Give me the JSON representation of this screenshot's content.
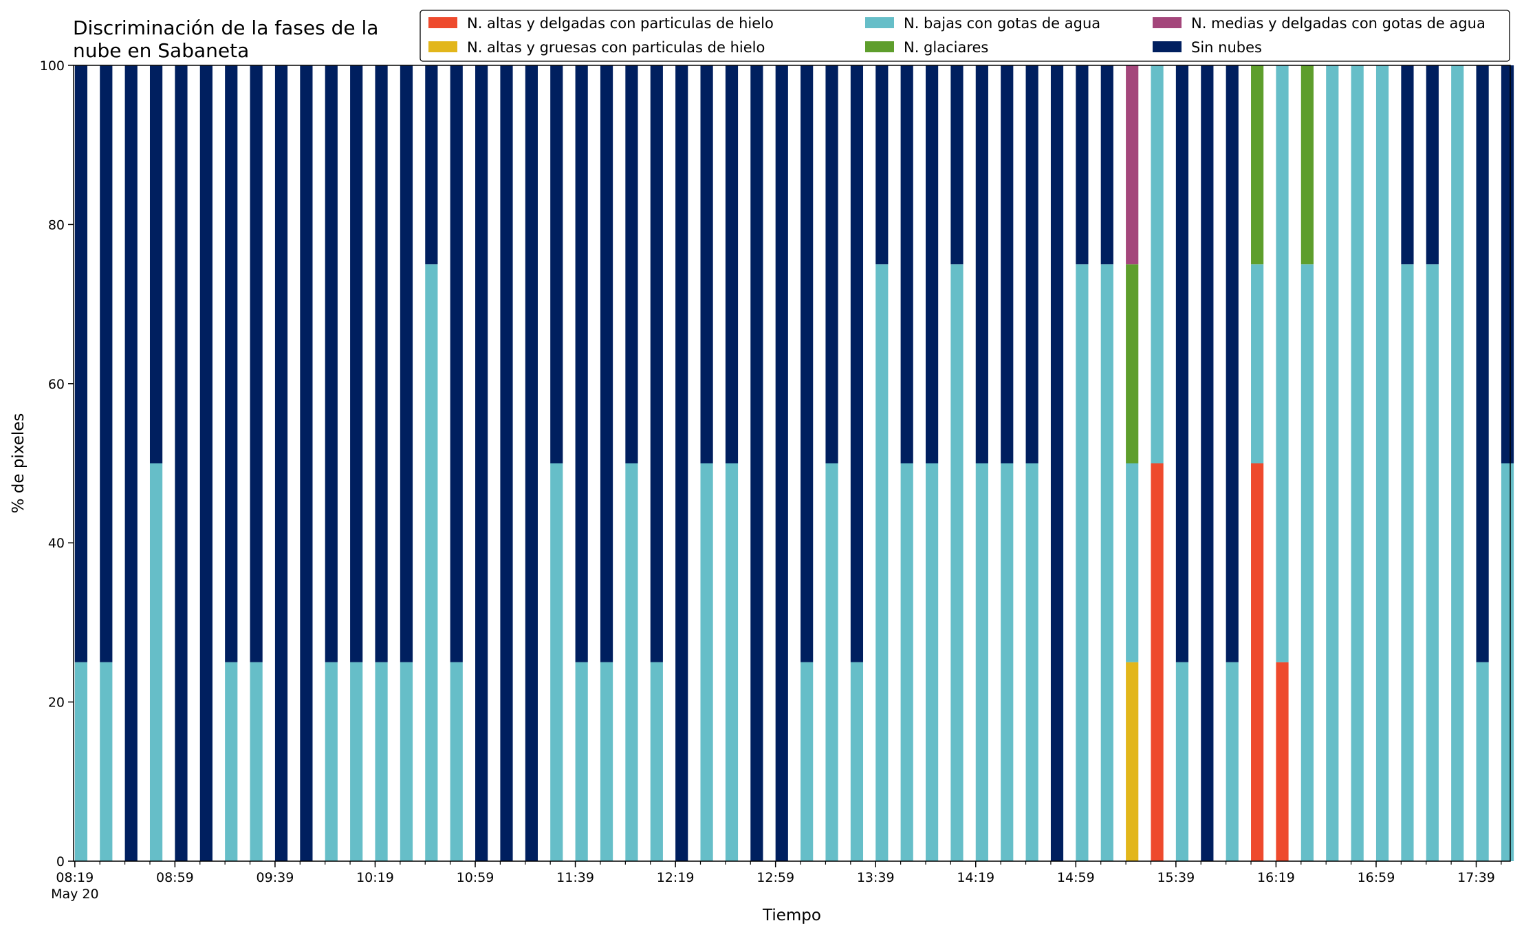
{
  "chart_data": {
    "type": "bar",
    "stacked": true,
    "title_lines": [
      "Discriminación de la fases de la",
      "nube en Sabaneta"
    ],
    "xlabel": "Tiempo",
    "ylabel": "% de pixeles",
    "ylim": [
      0,
      100
    ],
    "y_ticks": [
      0,
      20,
      40,
      60,
      80,
      100
    ],
    "x_tick_labels": [
      "08:19",
      "08:59",
      "09:39",
      "10:19",
      "10:59",
      "11:39",
      "12:19",
      "12:59",
      "13:39",
      "14:19",
      "14:59",
      "15:39",
      "16:19",
      "16:59",
      "17:39"
    ],
    "x_date_label": "May 20",
    "grid": false,
    "legend_position": "top-right",
    "legend_columns": 3,
    "times": [
      "08:19",
      "08:29",
      "08:39",
      "08:49",
      "08:59",
      "09:09",
      "09:19",
      "09:29",
      "09:39",
      "09:49",
      "09:59",
      "10:09",
      "10:19",
      "10:29",
      "10:39",
      "10:49",
      "10:59",
      "11:09",
      "11:19",
      "11:29",
      "11:39",
      "11:49",
      "11:59",
      "12:09",
      "12:19",
      "12:29",
      "12:39",
      "12:49",
      "12:59",
      "13:09",
      "13:19",
      "13:29",
      "13:39",
      "13:49",
      "13:59",
      "14:09",
      "14:19",
      "14:29",
      "14:39",
      "14:49",
      "14:59",
      "15:09",
      "15:19",
      "15:29",
      "15:39",
      "15:49",
      "15:59",
      "16:09",
      "16:19",
      "16:29",
      "16:39",
      "16:49",
      "16:59",
      "17:09",
      "17:19",
      "17:29",
      "17:39",
      "17:49"
    ],
    "series": [
      {
        "name": "N. altas y delgadas con particulas de hielo",
        "color": "#ee4a2d",
        "values": [
          0,
          0,
          0,
          0,
          0,
          0,
          0,
          0,
          0,
          0,
          0,
          0,
          0,
          0,
          0,
          0,
          0,
          0,
          0,
          0,
          0,
          0,
          0,
          0,
          0,
          0,
          0,
          0,
          0,
          0,
          0,
          0,
          0,
          0,
          0,
          0,
          0,
          0,
          0,
          0,
          0,
          0,
          0,
          50,
          0,
          0,
          0,
          50,
          25,
          0,
          0,
          0,
          0,
          0,
          0,
          0,
          0,
          0
        ]
      },
      {
        "name": "N. altas y gruesas con particulas de hielo",
        "color": "#e2b61b",
        "values": [
          0,
          0,
          0,
          0,
          0,
          0,
          0,
          0,
          0,
          0,
          0,
          0,
          0,
          0,
          0,
          0,
          0,
          0,
          0,
          0,
          0,
          0,
          0,
          0,
          0,
          0,
          0,
          0,
          0,
          0,
          0,
          0,
          0,
          0,
          0,
          0,
          0,
          0,
          0,
          0,
          0,
          0,
          25,
          0,
          0,
          0,
          0,
          0,
          0,
          0,
          0,
          0,
          0,
          0,
          0,
          0,
          0,
          0
        ]
      },
      {
        "name": "N. bajas con gotas de agua",
        "color": "#66bec8",
        "values": [
          25,
          25,
          0,
          50,
          0,
          0,
          25,
          25,
          0,
          0,
          25,
          25,
          25,
          25,
          75,
          25,
          0,
          0,
          0,
          50,
          25,
          25,
          50,
          25,
          0,
          50,
          50,
          0,
          0,
          25,
          50,
          25,
          75,
          50,
          50,
          75,
          50,
          50,
          50,
          0,
          75,
          75,
          25,
          50,
          25,
          0,
          25,
          25,
          75,
          75,
          100,
          100,
          100,
          75,
          75,
          100,
          25,
          50
        ]
      },
      {
        "name": "N. glaciares",
        "color": "#5e9e2c",
        "values": [
          0,
          0,
          0,
          0,
          0,
          0,
          0,
          0,
          0,
          0,
          0,
          0,
          0,
          0,
          0,
          0,
          0,
          0,
          0,
          0,
          0,
          0,
          0,
          0,
          0,
          0,
          0,
          0,
          0,
          0,
          0,
          0,
          0,
          0,
          0,
          0,
          0,
          0,
          0,
          0,
          0,
          0,
          25,
          0,
          0,
          0,
          0,
          25,
          0,
          25,
          0,
          0,
          0,
          0,
          0,
          0,
          0,
          0
        ]
      },
      {
        "name": "N. medias y delgadas con gotas de agua",
        "color": "#a4467b",
        "values": [
          0,
          0,
          0,
          0,
          0,
          0,
          0,
          0,
          0,
          0,
          0,
          0,
          0,
          0,
          0,
          0,
          0,
          0,
          0,
          0,
          0,
          0,
          0,
          0,
          0,
          0,
          0,
          0,
          0,
          0,
          0,
          0,
          0,
          0,
          0,
          0,
          0,
          0,
          0,
          0,
          0,
          0,
          25,
          0,
          0,
          0,
          0,
          0,
          0,
          0,
          0,
          0,
          0,
          0,
          0,
          0,
          0,
          0
        ]
      },
      {
        "name": "Sin nubes",
        "color": "#001f5f",
        "values": [
          75,
          75,
          100,
          50,
          100,
          100,
          75,
          75,
          100,
          100,
          75,
          75,
          75,
          75,
          25,
          75,
          100,
          100,
          100,
          50,
          75,
          75,
          50,
          75,
          100,
          50,
          50,
          100,
          100,
          75,
          50,
          75,
          25,
          50,
          50,
          25,
          50,
          50,
          50,
          100,
          25,
          25,
          0,
          0,
          75,
          100,
          75,
          0,
          0,
          0,
          0,
          0,
          0,
          25,
          25,
          0,
          75,
          50
        ]
      }
    ]
  }
}
